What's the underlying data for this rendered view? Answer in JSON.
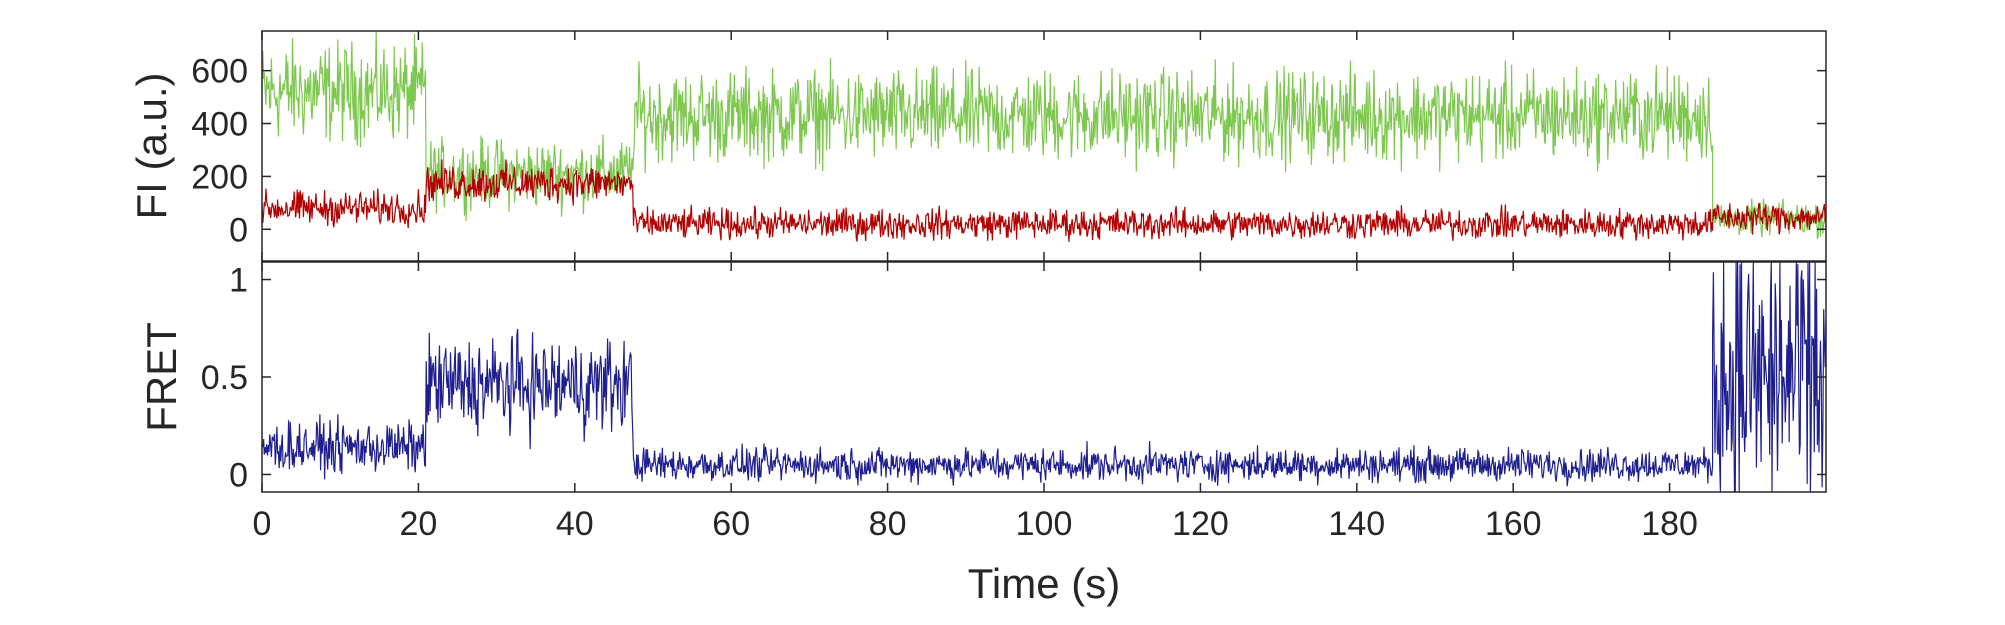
{
  "chart_data": [
    {
      "type": "line",
      "panel": "intensity",
      "xlim": [
        0,
        200
      ],
      "ylim": [
        -120,
        750
      ],
      "ylabel": "FI (a.u.)",
      "yticks": [
        0,
        200,
        400,
        600
      ],
      "ytick_labels": [
        "0",
        "200",
        "400",
        "600"
      ],
      "grid": false,
      "series": [
        {
          "color": "#7ec850",
          "segments": [
            {
              "start": 0,
              "end": 21,
              "mean": 520,
              "noise": 130
            },
            {
              "start": 21,
              "end": 47.5,
              "mean": 210,
              "noise": 90
            },
            {
              "start": 47.5,
              "end": 185.5,
              "mean": 430,
              "noise": 120
            },
            {
              "start": 185.5,
              "end": 200,
              "mean": 40,
              "noise": 45
            }
          ]
        },
        {
          "color": "#b30000",
          "segments": [
            {
              "start": 0,
              "end": 21,
              "mean": 80,
              "noise": 45
            },
            {
              "start": 21,
              "end": 47.5,
              "mean": 175,
              "noise": 50
            },
            {
              "start": 47.5,
              "end": 185.5,
              "mean": 20,
              "noise": 40
            },
            {
              "start": 185.5,
              "end": 200,
              "mean": 45,
              "noise": 40
            }
          ]
        }
      ]
    },
    {
      "type": "line",
      "panel": "fret",
      "xlim": [
        0,
        200
      ],
      "ylim": [
        -0.09,
        1.09
      ],
      "ylabel": "FRET",
      "xlabel": "Time (s)",
      "xticks": [
        0,
        20,
        40,
        60,
        80,
        100,
        120,
        140,
        160,
        180
      ],
      "xtick_labels": [
        "0",
        "20",
        "40",
        "60",
        "80",
        "100",
        "120",
        "140",
        "160",
        "180"
      ],
      "yticks": [
        0,
        0.5,
        1
      ],
      "ytick_labels": [
        "0",
        "0.5",
        "1"
      ],
      "grid": false,
      "series": [
        {
          "color": "#1f1f8f",
          "segments": [
            {
              "start": 0,
              "end": 21,
              "mean": 0.14,
              "noise": 0.09
            },
            {
              "start": 21,
              "end": 47.5,
              "mean": 0.46,
              "noise": 0.17
            },
            {
              "start": 47.5,
              "end": 185.5,
              "mean": 0.05,
              "noise": 0.06
            },
            {
              "start": 185.5,
              "end": 200,
              "mean": 0.5,
              "noise": 0.55
            }
          ]
        }
      ]
    }
  ]
}
